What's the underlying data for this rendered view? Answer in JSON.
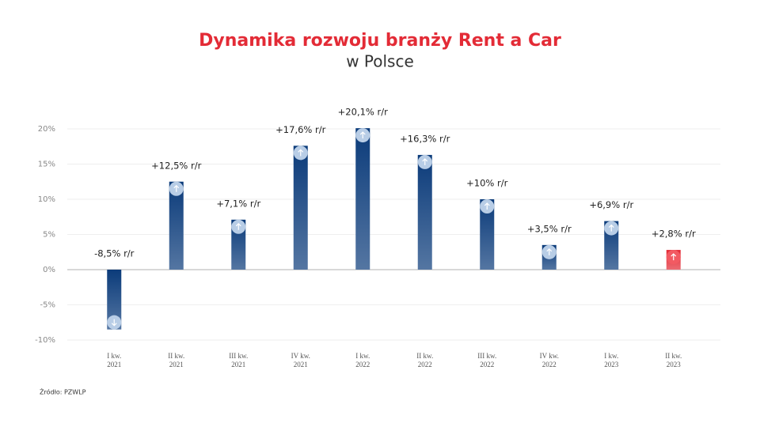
{
  "chart_data": {
    "type": "bar",
    "title": "Dynamika rozwoju branży Rent a Car",
    "subtitle": "w Polsce",
    "source": "Źródło: PZWLP",
    "categories": [
      [
        "I kw.",
        "2021"
      ],
      [
        "II kw.",
        "2021"
      ],
      [
        "III kw.",
        "2021"
      ],
      [
        "IV kw.",
        "2021"
      ],
      [
        "I kw.",
        "2022"
      ],
      [
        "II kw.",
        "2022"
      ],
      [
        "III kw.",
        "2022"
      ],
      [
        "IV kw.",
        "2022"
      ],
      [
        "I kw.",
        "2023"
      ],
      [
        "II kw.",
        "2023"
      ]
    ],
    "values": [
      -8.5,
      12.5,
      7.1,
      17.6,
      20.1,
      16.3,
      10,
      3.5,
      6.9,
      2.8
    ],
    "value_labels": [
      "-8,5% r/r",
      "+12,5% r/r",
      "+7,1% r/r",
      "+17,6% r/r",
      "+20,1% r/r",
      "+16,3% r/r",
      "+10% r/r",
      "+3,5% r/r",
      "+6,9% r/r",
      "+2,8% r/r"
    ],
    "colors": [
      "#0b3b7a",
      "#0b3b7a",
      "#0b3b7a",
      "#0b3b7a",
      "#0b3b7a",
      "#0b3b7a",
      "#0b3b7a",
      "#0b3b7a",
      "#0b3b7a",
      "#e32b36"
    ],
    "ylim": [
      -10,
      20
    ],
    "yticks": [
      {
        "value": -10,
        "label": "-10%"
      },
      {
        "value": -5,
        "label": "-5%"
      },
      {
        "value": 0,
        "label": "0%"
      },
      {
        "value": 5,
        "label": "5%"
      },
      {
        "value": 10,
        "label": "10%"
      },
      {
        "value": 15,
        "label": "15%"
      },
      {
        "value": 20,
        "label": "20%"
      }
    ],
    "grid": true
  }
}
